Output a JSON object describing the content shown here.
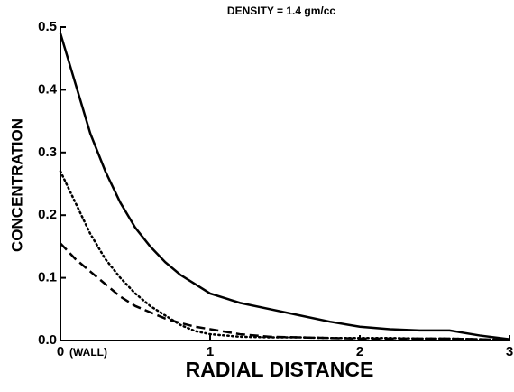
{
  "chart_data": {
    "type": "line",
    "title": "DENSITY = 1.4 gm/cc",
    "xlabel": "RADIAL DISTANCE",
    "ylabel": "CONCENTRATION",
    "annotation": "(WALL)",
    "x": [
      0,
      0.1,
      0.2,
      0.3,
      0.4,
      0.5,
      0.6,
      0.7,
      0.8,
      0.9,
      1.0,
      1.2,
      1.4,
      1.6,
      1.8,
      2.0,
      2.2,
      2.4,
      2.6,
      2.8,
      3.0
    ],
    "series": [
      {
        "color": "#000000",
        "dash": "solid",
        "values": [
          0.49,
          0.41,
          0.33,
          0.27,
          0.22,
          0.18,
          0.15,
          0.125,
          0.105,
          0.09,
          0.075,
          0.06,
          0.05,
          0.04,
          0.03,
          0.022,
          0.018,
          0.016,
          0.016,
          0.008,
          0.002
        ]
      },
      {
        "color": "#000000",
        "dash": "dotted",
        "values": [
          0.27,
          0.22,
          0.17,
          0.13,
          0.1,
          0.075,
          0.055,
          0.04,
          0.025,
          0.015,
          0.01,
          0.006,
          0.005,
          0.005,
          0.004,
          0.004,
          0.004,
          0.003,
          0.003,
          0.002,
          0.001
        ]
      },
      {
        "color": "#000000",
        "dash": "dashed",
        "values": [
          0.155,
          0.13,
          0.11,
          0.09,
          0.07,
          0.055,
          0.045,
          0.035,
          0.028,
          0.022,
          0.018,
          0.01,
          0.006,
          0.005,
          0.004,
          0.003,
          0.003,
          0.003,
          0.003,
          0.002,
          0.001
        ]
      }
    ],
    "xlim": [
      0,
      3
    ],
    "xticks": [
      0,
      1,
      2,
      3
    ],
    "ylim": [
      0,
      0.5
    ],
    "yticks": [
      {
        "value": 0,
        "label": "0.0"
      },
      0.1,
      0.2,
      0.3,
      0.4,
      0.5
    ],
    "grid": false
  }
}
